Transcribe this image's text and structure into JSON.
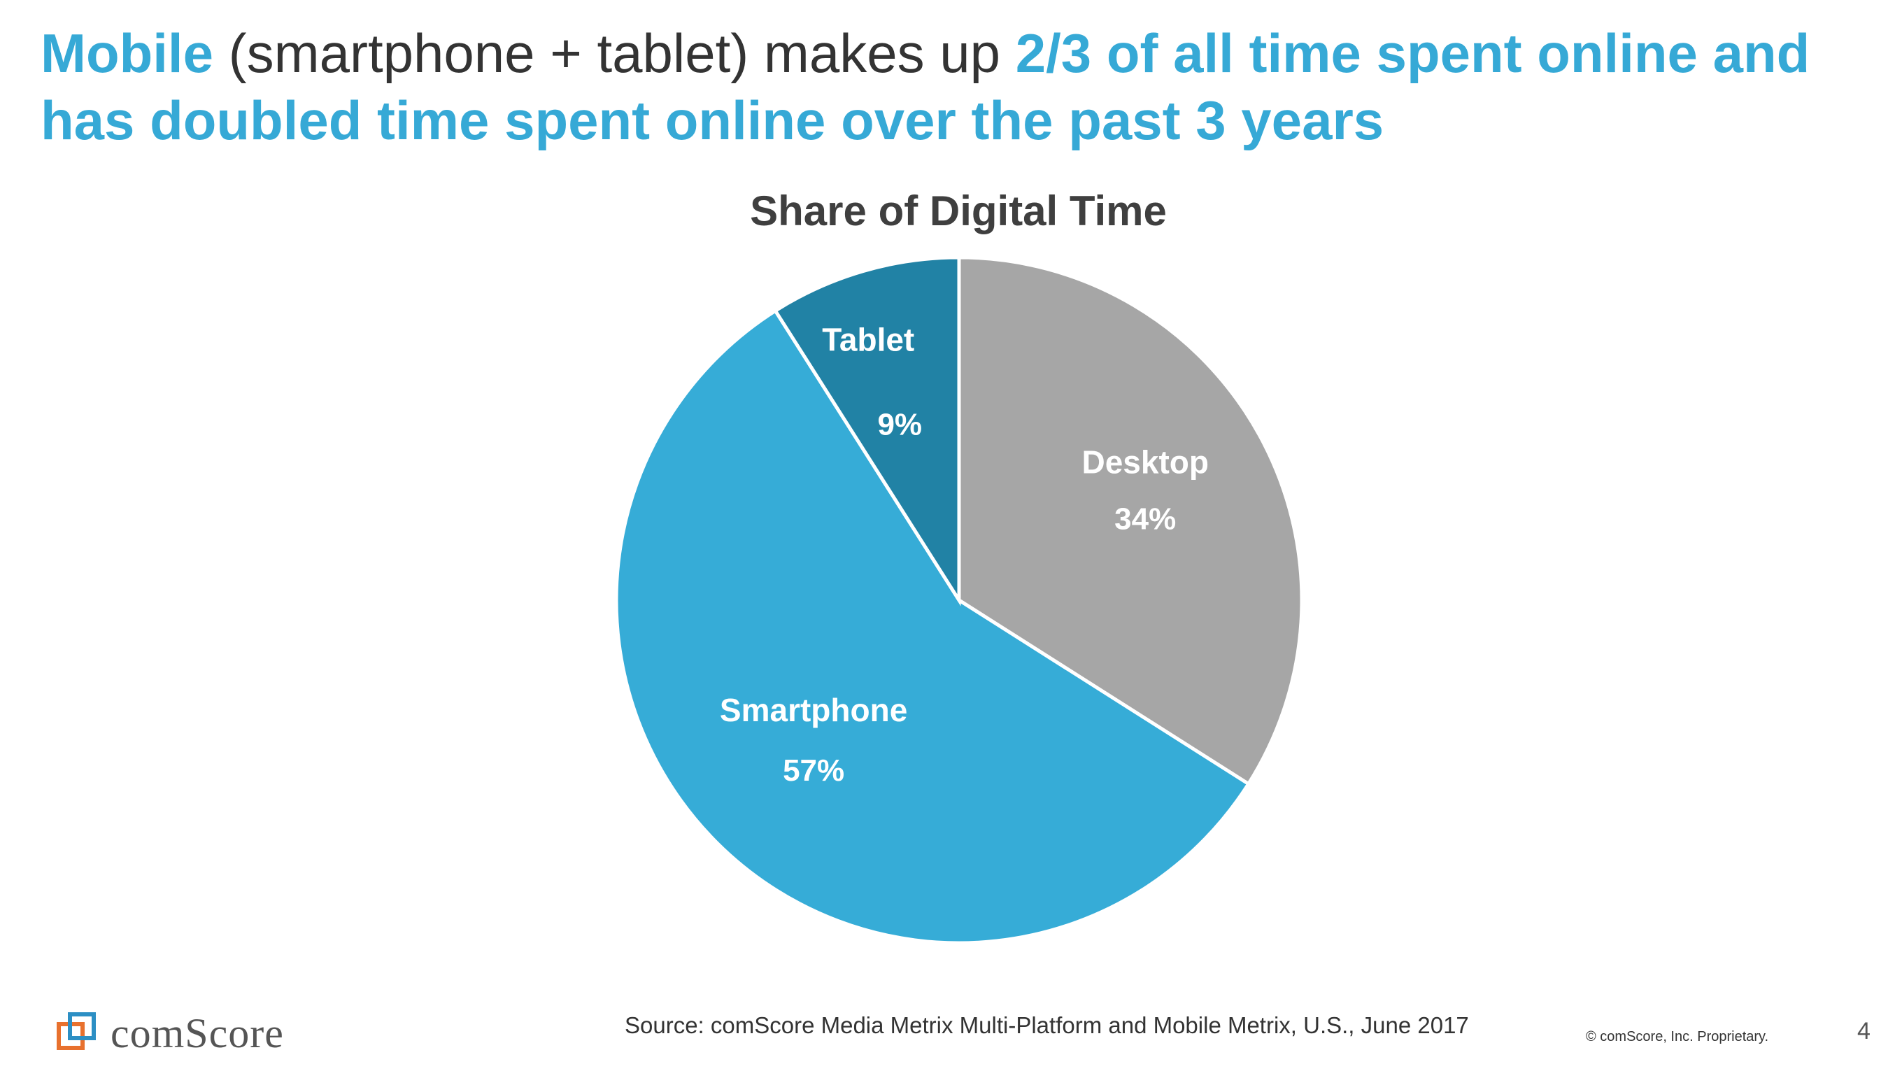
{
  "headline": {
    "part1": "Mobile",
    "part2": " (smartphone + tablet) makes up ",
    "part3": "2/3 of all time spent online and has doubled time spent online over the past 3 years"
  },
  "chart_data": {
    "type": "pie",
    "title": "Share of Digital Time",
    "slices": [
      {
        "label": "Desktop",
        "value": 34,
        "value_label": "34%",
        "color": "#a6a6a6"
      },
      {
        "label": "Smartphone",
        "value": 57,
        "value_label": "57%",
        "color": "#36acd7"
      },
      {
        "label": "Tablet",
        "value": 9,
        "value_label": "9%",
        "color": "#2182a5"
      }
    ],
    "start": "12 o'clock",
    "direction": "clockwise"
  },
  "footer": {
    "source": "Source: comScore Media Metrix Multi-Platform and Mobile Metrix, U.S., June 2017",
    "copyright": "© comScore, Inc. Proprietary.",
    "page_number": "4",
    "logo_text": "comScore"
  },
  "colors": {
    "accent": "#36a9d6",
    "text": "#333333"
  }
}
